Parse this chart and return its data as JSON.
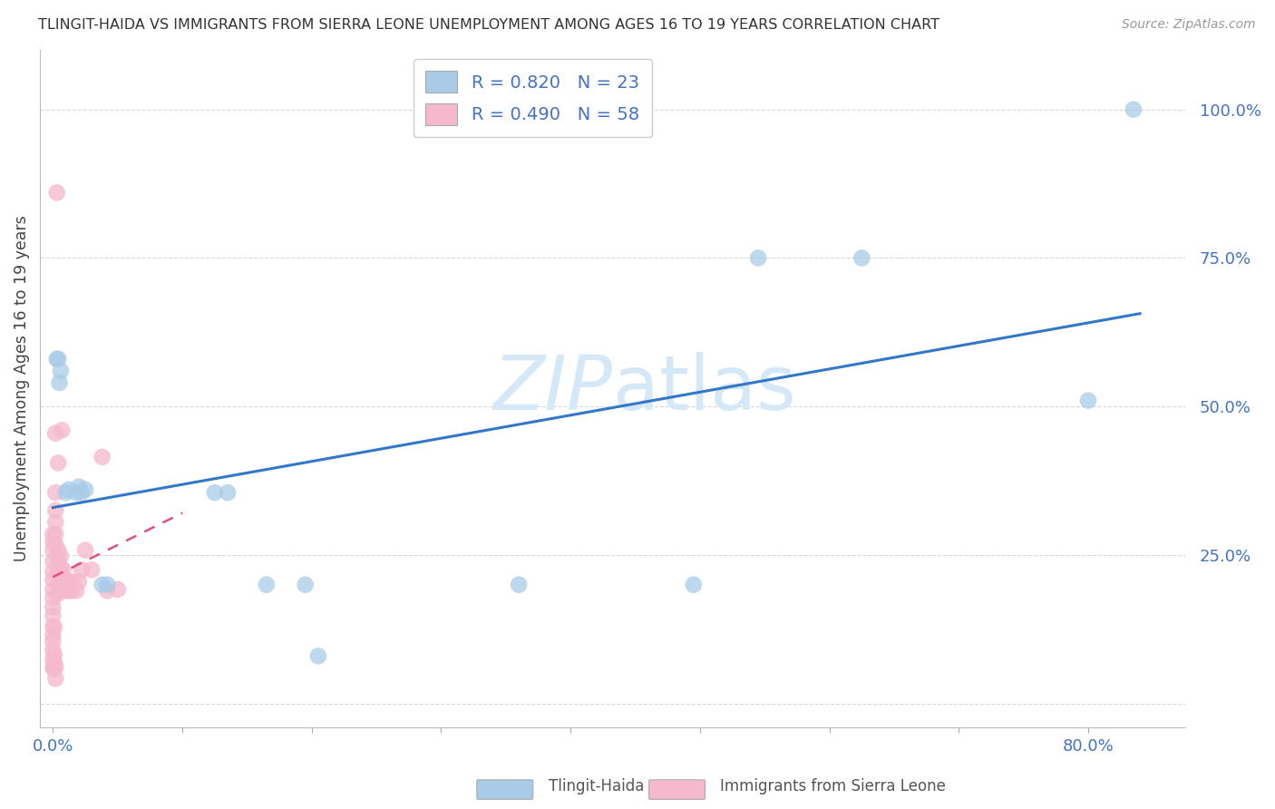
{
  "title": "TLINGIT-HAIDA VS IMMIGRANTS FROM SIERRA LEONE UNEMPLOYMENT AMONG AGES 16 TO 19 YEARS CORRELATION CHART",
  "source": "Source: ZipAtlas.com",
  "ylabel": "Unemployment Among Ages 16 to 19 years",
  "blue_color": "#a8cce8",
  "pink_color": "#f5b8cc",
  "blue_line_color": "#3378c8",
  "pink_line_color": "#e0507a",
  "watermark_color": "#d5e8f8",
  "axis_label_color": "#4472c4",
  "background_color": "#ffffff",
  "grid_color": "#d8d8d8",
  "title_color": "#333333",
  "figsize": [
    14.06,
    8.92
  ],
  "dpi": 100,
  "blue_x": [
    0.004,
    0.005,
    0.01,
    0.012,
    0.018,
    0.02,
    0.022,
    0.025,
    0.125,
    0.135,
    0.165,
    0.195,
    0.205,
    0.36,
    0.495,
    0.545,
    0.625,
    0.8,
    0.835,
    0.003,
    0.006,
    0.038,
    0.042
  ],
  "blue_y": [
    0.58,
    0.54,
    0.355,
    0.36,
    0.355,
    0.365,
    0.355,
    0.36,
    0.355,
    0.355,
    0.2,
    0.2,
    0.08,
    0.2,
    0.2,
    0.75,
    0.75,
    0.51,
    1.0,
    0.58,
    0.56,
    0.2,
    0.2
  ],
  "pink_x": [
    0.0,
    0.0,
    0.0,
    0.0,
    0.0,
    0.0,
    0.0,
    0.0,
    0.0,
    0.0,
    0.0,
    0.0,
    0.0,
    0.0,
    0.0,
    0.0,
    0.002,
    0.002,
    0.002,
    0.002,
    0.002,
    0.002,
    0.004,
    0.004,
    0.004,
    0.004,
    0.004,
    0.004,
    0.006,
    0.006,
    0.006,
    0.006,
    0.008,
    0.008,
    0.008,
    0.01,
    0.01,
    0.012,
    0.012,
    0.014,
    0.015,
    0.018,
    0.02,
    0.022,
    0.025,
    0.03,
    0.038,
    0.042,
    0.05,
    0.003,
    0.007,
    0.001,
    0.001,
    0.001,
    0.001,
    0.002,
    0.002
  ],
  "pink_y": [
    0.06,
    0.075,
    0.09,
    0.105,
    0.115,
    0.13,
    0.148,
    0.162,
    0.178,
    0.192,
    0.208,
    0.222,
    0.24,
    0.258,
    0.272,
    0.285,
    0.268,
    0.285,
    0.305,
    0.325,
    0.355,
    0.455,
    0.185,
    0.198,
    0.225,
    0.242,
    0.258,
    0.405,
    0.192,
    0.205,
    0.228,
    0.248,
    0.195,
    0.21,
    0.225,
    0.19,
    0.205,
    0.19,
    0.205,
    0.19,
    0.205,
    0.19,
    0.205,
    0.225,
    0.258,
    0.225,
    0.415,
    0.19,
    0.192,
    0.86,
    0.46,
    0.068,
    0.082,
    0.058,
    0.128,
    0.062,
    0.042
  ]
}
